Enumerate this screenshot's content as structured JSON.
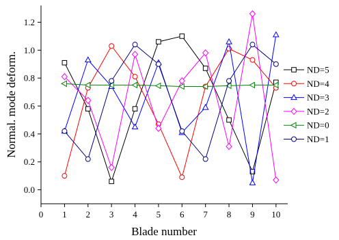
{
  "chart_data": {
    "type": "line",
    "title": "",
    "xlabel": "Blade number",
    "ylabel": "Normal. mode deform.",
    "xlim": [
      0,
      10.5
    ],
    "ylim": [
      -0.1,
      1.32
    ],
    "xticks": [
      0,
      1,
      2,
      3,
      4,
      5,
      6,
      7,
      8,
      9,
      10
    ],
    "yticks": [
      0.0,
      0.2,
      0.4,
      0.6,
      0.8,
      1.0,
      1.2
    ],
    "ytick_labels": [
      "0.0",
      "0.2",
      "0.4",
      "0.6",
      "0.8",
      "1.0",
      "1.2"
    ],
    "grid": false,
    "legend_position": "right",
    "x": [
      1,
      2,
      3,
      4,
      5,
      6,
      7,
      8,
      9,
      10
    ],
    "series": [
      {
        "name": "ND=5",
        "color": "#000000",
        "marker": "square",
        "values": [
          0.91,
          0.58,
          0.06,
          0.58,
          1.06,
          1.1,
          0.87,
          0.5,
          0.13,
          0.77
        ]
      },
      {
        "name": "ND=4",
        "color": "#ff0000",
        "marker": "circle",
        "values": [
          0.1,
          0.73,
          1.03,
          0.81,
          0.47,
          0.09,
          0.74,
          1.01,
          0.93,
          0.73
        ]
      },
      {
        "name": "ND=3",
        "color": "#0000ff",
        "marker": "triangle-up",
        "values": [
          0.42,
          0.93,
          0.74,
          0.45,
          0.91,
          0.41,
          0.59,
          1.06,
          0.05,
          1.11
        ]
      },
      {
        "name": "ND=2",
        "color": "#ff00ff",
        "marker": "diamond",
        "values": [
          0.81,
          0.64,
          0.16,
          0.97,
          0.44,
          0.78,
          0.98,
          0.31,
          1.26,
          0.07
        ]
      },
      {
        "name": "ND=0",
        "color": "#008000",
        "marker": "triangle-left",
        "values": [
          0.76,
          0.75,
          0.75,
          0.75,
          0.745,
          0.74,
          0.74,
          0.745,
          0.75,
          0.75
        ]
      },
      {
        "name": "ND=1",
        "color": "#000080",
        "marker": "circle",
        "values": [
          0.42,
          0.22,
          0.78,
          1.04,
          0.9,
          0.42,
          0.22,
          0.78,
          1.04,
          0.9
        ]
      }
    ]
  }
}
